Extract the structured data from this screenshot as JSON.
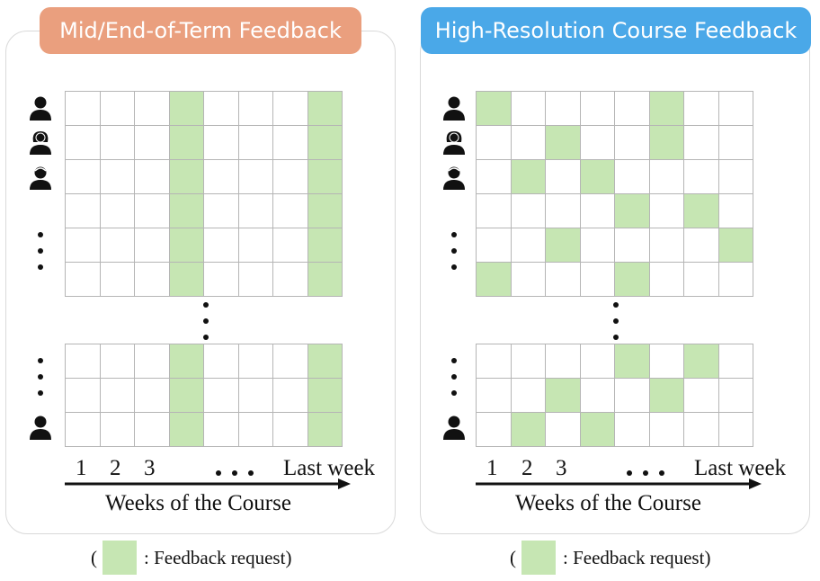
{
  "left_panel": {
    "title": "Mid/End-of-Term Feedback",
    "title_color": "#ea9f7e",
    "top_grid": [
      [
        0,
        0,
        0,
        1,
        0,
        0,
        0,
        1
      ],
      [
        0,
        0,
        0,
        1,
        0,
        0,
        0,
        1
      ],
      [
        0,
        0,
        0,
        1,
        0,
        0,
        0,
        1
      ],
      [
        0,
        0,
        0,
        1,
        0,
        0,
        0,
        1
      ],
      [
        0,
        0,
        0,
        1,
        0,
        0,
        0,
        1
      ],
      [
        0,
        0,
        0,
        1,
        0,
        0,
        0,
        1
      ]
    ],
    "bottom_grid": [
      [
        0,
        0,
        0,
        1,
        0,
        0,
        0,
        1
      ],
      [
        0,
        0,
        0,
        1,
        0,
        0,
        0,
        1
      ],
      [
        0,
        0,
        0,
        1,
        0,
        0,
        0,
        1
      ]
    ],
    "week_labels": [
      "1",
      "2",
      "3"
    ],
    "last_week_label": "Last week",
    "axis_label": "Weeks of the Course"
  },
  "right_panel": {
    "title": "High-Resolution Course Feedback",
    "title_color": "#4aa8e8",
    "top_grid": [
      [
        1,
        0,
        0,
        0,
        0,
        1,
        0,
        0
      ],
      [
        0,
        0,
        1,
        0,
        0,
        1,
        0,
        0
      ],
      [
        0,
        1,
        0,
        1,
        0,
        0,
        0,
        0
      ],
      [
        0,
        0,
        0,
        0,
        1,
        0,
        1,
        0
      ],
      [
        0,
        0,
        1,
        0,
        0,
        0,
        0,
        1
      ],
      [
        1,
        0,
        0,
        0,
        1,
        0,
        0,
        0
      ]
    ],
    "bottom_grid": [
      [
        0,
        0,
        0,
        0,
        1,
        0,
        1,
        0
      ],
      [
        0,
        0,
        1,
        0,
        0,
        1,
        0,
        0
      ],
      [
        0,
        1,
        0,
        1,
        0,
        0,
        0,
        0
      ]
    ],
    "week_labels": [
      "1",
      "2",
      "3"
    ],
    "last_week_label": "Last week",
    "axis_label": "Weeks of the Course"
  },
  "legend": {
    "open_paren": "(",
    "text": ": Feedback request)",
    "swatch_color": "#c6e6b3"
  },
  "icons": {
    "student_male": "person-icon",
    "student_female": "person-long-hair-icon",
    "student_short_hair": "person-short-hair-icon"
  }
}
